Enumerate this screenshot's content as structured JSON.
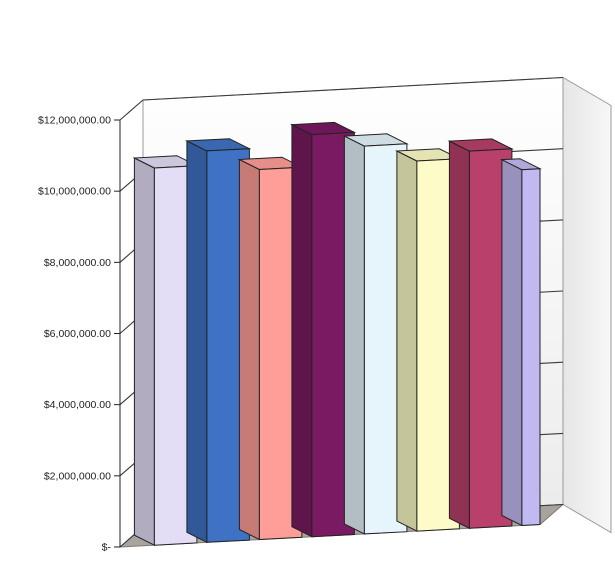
{
  "chart_data": {
    "type": "bar",
    "variant": "3d-column",
    "title": "",
    "xlabel": "",
    "ylabel": "",
    "ylim": [
      0,
      12000000
    ],
    "y_ticks": [
      {
        "value": 0,
        "label": "$-"
      },
      {
        "value": 2000000,
        "label": "$2,000,000.00"
      },
      {
        "value": 4000000,
        "label": "$4,000,000.00"
      },
      {
        "value": 6000000,
        "label": "$6,000,000.00"
      },
      {
        "value": 8000000,
        "label": "$8,000,000.00"
      },
      {
        "value": 10000000,
        "label": "$10,000,000.00"
      },
      {
        "value": 12000000,
        "label": "$12,000,000.00"
      }
    ],
    "grid": true,
    "legend": "none",
    "series": [
      {
        "values": [
          10600000
        ],
        "color": "#e4ddf6"
      },
      {
        "values": [
          11000000
        ],
        "color": "#3f72c4"
      },
      {
        "values": [
          10400000
        ],
        "color": "#ff9e98"
      },
      {
        "values": [
          11300000
        ],
        "color": "#7a1a62"
      },
      {
        "values": [
          10900000
        ],
        "color": "#e6f4fb"
      },
      {
        "values": [
          10400000
        ],
        "color": "#fdfcc8"
      },
      {
        "values": [
          10600000
        ],
        "color": "#b8406b"
      },
      {
        "values": [
          10000000
        ],
        "color": "#c3b9f2"
      }
    ]
  }
}
